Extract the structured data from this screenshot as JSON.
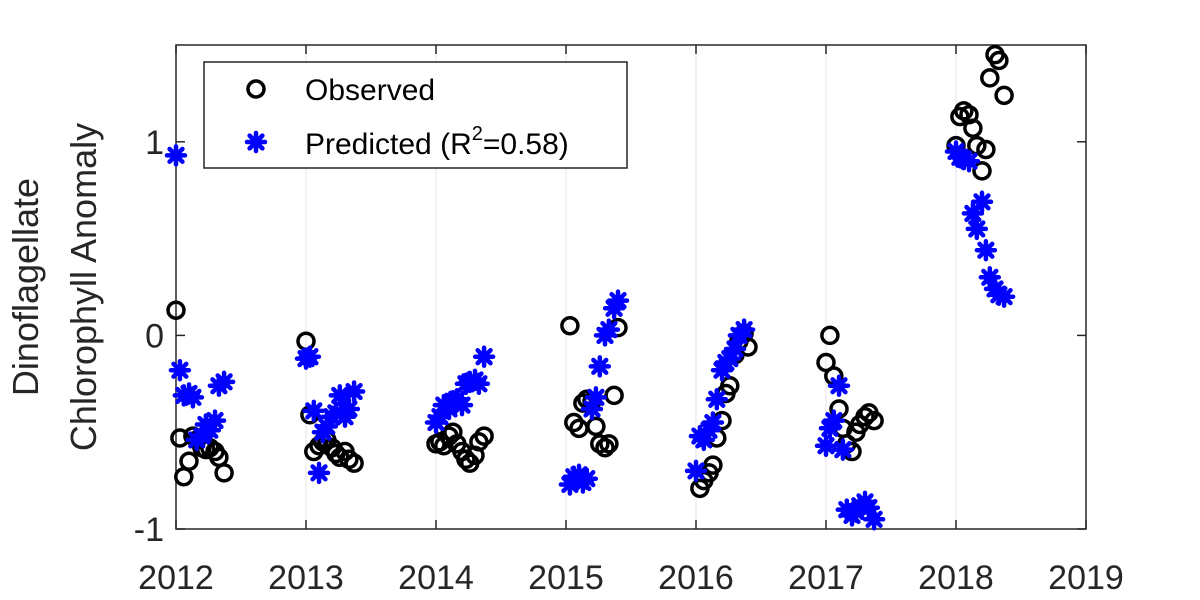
{
  "chart_data": {
    "type": "scatter",
    "title": "",
    "xlabel": "",
    "ylabel_lines": [
      "Dinoflagellate",
      "Chlorophyll Anomaly"
    ],
    "xlim": [
      2012,
      2019
    ],
    "ylim": [
      -1,
      1.5
    ],
    "xticks": [
      2012,
      2013,
      2014,
      2015,
      2016,
      2017,
      2018,
      2019
    ],
    "xtick_labels": [
      "2012",
      "2013",
      "2014",
      "2015",
      "2016",
      "2017",
      "2018",
      "2019"
    ],
    "yticks": [
      -1,
      0,
      1
    ],
    "ytick_labels": [
      "-1",
      "0",
      "1"
    ],
    "grid": "vertical",
    "legend_position": "top-left",
    "legend": {
      "observed_label": "Observed",
      "predicted_label_pre": "Predicted (R",
      "predicted_label_sup": "2",
      "predicted_label_post": "=0.58)"
    },
    "colors": {
      "observed": "#000000",
      "predicted": "#0000ff",
      "axis": "#262626",
      "grid": "#e6e6e6"
    },
    "series": [
      {
        "name": "Observed",
        "marker": "circle",
        "points": [
          [
            2012.0,
            0.13
          ],
          [
            2012.03,
            -0.53
          ],
          [
            2012.06,
            -0.73
          ],
          [
            2012.1,
            -0.65
          ],
          [
            2012.13,
            -0.52
          ],
          [
            2012.16,
            -0.54
          ],
          [
            2012.2,
            -0.58
          ],
          [
            2012.23,
            -0.59
          ],
          [
            2012.26,
            -0.58
          ],
          [
            2012.3,
            -0.6
          ],
          [
            2012.33,
            -0.63
          ],
          [
            2012.37,
            -0.71
          ],
          [
            2013.0,
            -0.03
          ],
          [
            2013.03,
            -0.41
          ],
          [
            2013.06,
            -0.6
          ],
          [
            2013.1,
            -0.57
          ],
          [
            2013.13,
            -0.55
          ],
          [
            2013.16,
            -0.54
          ],
          [
            2013.2,
            -0.58
          ],
          [
            2013.23,
            -0.61
          ],
          [
            2013.26,
            -0.63
          ],
          [
            2013.3,
            -0.6
          ],
          [
            2013.33,
            -0.64
          ],
          [
            2013.37,
            -0.66
          ],
          [
            2014.0,
            -0.56
          ],
          [
            2014.03,
            -0.55
          ],
          [
            2014.06,
            -0.57
          ],
          [
            2014.1,
            -0.52
          ],
          [
            2014.13,
            -0.5
          ],
          [
            2014.16,
            -0.56
          ],
          [
            2014.2,
            -0.6
          ],
          [
            2014.23,
            -0.64
          ],
          [
            2014.26,
            -0.66
          ],
          [
            2014.3,
            -0.62
          ],
          [
            2014.33,
            -0.55
          ],
          [
            2014.37,
            -0.52
          ],
          [
            2015.03,
            0.05
          ],
          [
            2015.06,
            -0.45
          ],
          [
            2015.1,
            -0.48
          ],
          [
            2015.13,
            -0.35
          ],
          [
            2015.16,
            -0.33
          ],
          [
            2015.2,
            -0.34
          ],
          [
            2015.23,
            -0.47
          ],
          [
            2015.26,
            -0.56
          ],
          [
            2015.3,
            -0.58
          ],
          [
            2015.33,
            -0.56
          ],
          [
            2015.37,
            -0.31
          ],
          [
            2015.4,
            0.04
          ],
          [
            2016.03,
            -0.79
          ],
          [
            2016.06,
            -0.75
          ],
          [
            2016.1,
            -0.71
          ],
          [
            2016.13,
            -0.67
          ],
          [
            2016.16,
            -0.53
          ],
          [
            2016.2,
            -0.44
          ],
          [
            2016.23,
            -0.3
          ],
          [
            2016.26,
            -0.26
          ],
          [
            2016.3,
            -0.1
          ],
          [
            2016.33,
            -0.03
          ],
          [
            2016.37,
            0.01
          ],
          [
            2016.4,
            -0.06
          ],
          [
            2017.0,
            -0.14
          ],
          [
            2017.03,
            0.0
          ],
          [
            2017.06,
            -0.21
          ],
          [
            2017.1,
            -0.38
          ],
          [
            2017.13,
            -0.48
          ],
          [
            2017.16,
            -0.56
          ],
          [
            2017.2,
            -0.6
          ],
          [
            2017.23,
            -0.5
          ],
          [
            2017.26,
            -0.46
          ],
          [
            2017.3,
            -0.42
          ],
          [
            2017.33,
            -0.4
          ],
          [
            2017.37,
            -0.44
          ],
          [
            2018.0,
            0.98
          ],
          [
            2018.03,
            1.13
          ],
          [
            2018.06,
            1.16
          ],
          [
            2018.1,
            1.14
          ],
          [
            2018.13,
            1.07
          ],
          [
            2018.16,
            0.98
          ],
          [
            2018.2,
            0.85
          ],
          [
            2018.23,
            0.96
          ],
          [
            2018.26,
            1.33
          ],
          [
            2018.3,
            1.45
          ],
          [
            2018.33,
            1.42
          ],
          [
            2018.37,
            1.24
          ]
        ]
      },
      {
        "name": "Predicted (R2=0.58)",
        "marker": "star",
        "points": [
          [
            2012.0,
            0.93
          ],
          [
            2012.03,
            -0.18
          ],
          [
            2012.06,
            -0.31
          ],
          [
            2012.1,
            -0.3
          ],
          [
            2012.13,
            -0.32
          ],
          [
            2012.16,
            -0.54
          ],
          [
            2012.2,
            -0.52
          ],
          [
            2012.23,
            -0.46
          ],
          [
            2012.26,
            -0.49
          ],
          [
            2012.3,
            -0.44
          ],
          [
            2012.33,
            -0.26
          ],
          [
            2012.37,
            -0.24
          ],
          [
            2013.0,
            -0.12
          ],
          [
            2013.03,
            -0.11
          ],
          [
            2013.06,
            -0.39
          ],
          [
            2013.1,
            -0.71
          ],
          [
            2013.13,
            -0.5
          ],
          [
            2013.16,
            -0.47
          ],
          [
            2013.2,
            -0.42
          ],
          [
            2013.23,
            -0.4
          ],
          [
            2013.26,
            -0.31
          ],
          [
            2013.3,
            -0.42
          ],
          [
            2013.33,
            -0.38
          ],
          [
            2013.37,
            -0.29
          ],
          [
            2014.0,
            -0.45
          ],
          [
            2014.03,
            -0.42
          ],
          [
            2014.06,
            -0.36
          ],
          [
            2014.1,
            -0.38
          ],
          [
            2014.13,
            -0.34
          ],
          [
            2014.16,
            -0.33
          ],
          [
            2014.2,
            -0.36
          ],
          [
            2014.23,
            -0.25
          ],
          [
            2014.26,
            -0.24
          ],
          [
            2014.3,
            -0.23
          ],
          [
            2014.33,
            -0.25
          ],
          [
            2014.37,
            -0.11
          ],
          [
            2015.03,
            -0.77
          ],
          [
            2015.06,
            -0.73
          ],
          [
            2015.1,
            -0.72
          ],
          [
            2015.13,
            -0.76
          ],
          [
            2015.16,
            -0.74
          ],
          [
            2015.2,
            -0.38
          ],
          [
            2015.23,
            -0.32
          ],
          [
            2015.26,
            -0.16
          ],
          [
            2015.3,
            0.0
          ],
          [
            2015.33,
            0.03
          ],
          [
            2015.37,
            0.14
          ],
          [
            2015.4,
            0.18
          ],
          [
            2016.0,
            -0.7
          ],
          [
            2016.03,
            -0.52
          ],
          [
            2016.06,
            -0.54
          ],
          [
            2016.1,
            -0.49
          ],
          [
            2016.13,
            -0.45
          ],
          [
            2016.16,
            -0.33
          ],
          [
            2016.2,
            -0.18
          ],
          [
            2016.23,
            -0.14
          ],
          [
            2016.26,
            -0.12
          ],
          [
            2016.3,
            -0.07
          ],
          [
            2016.33,
            0.0
          ],
          [
            2016.37,
            0.03
          ],
          [
            2017.0,
            -0.57
          ],
          [
            2017.03,
            -0.48
          ],
          [
            2017.06,
            -0.44
          ],
          [
            2017.1,
            -0.26
          ],
          [
            2017.13,
            -0.59
          ],
          [
            2017.16,
            -0.9
          ],
          [
            2017.2,
            -0.93
          ],
          [
            2017.23,
            -0.91
          ],
          [
            2017.26,
            -0.88
          ],
          [
            2017.3,
            -0.86
          ],
          [
            2017.33,
            -0.89
          ],
          [
            2017.37,
            -0.95
          ],
          [
            2018.0,
            0.95
          ],
          [
            2018.03,
            0.92
          ],
          [
            2018.06,
            0.91
          ],
          [
            2018.1,
            0.9
          ],
          [
            2018.13,
            0.63
          ],
          [
            2018.16,
            0.55
          ],
          [
            2018.2,
            0.69
          ],
          [
            2018.23,
            0.44
          ],
          [
            2018.26,
            0.3
          ],
          [
            2018.3,
            0.24
          ],
          [
            2018.33,
            0.21
          ],
          [
            2018.37,
            0.2
          ]
        ]
      }
    ]
  }
}
